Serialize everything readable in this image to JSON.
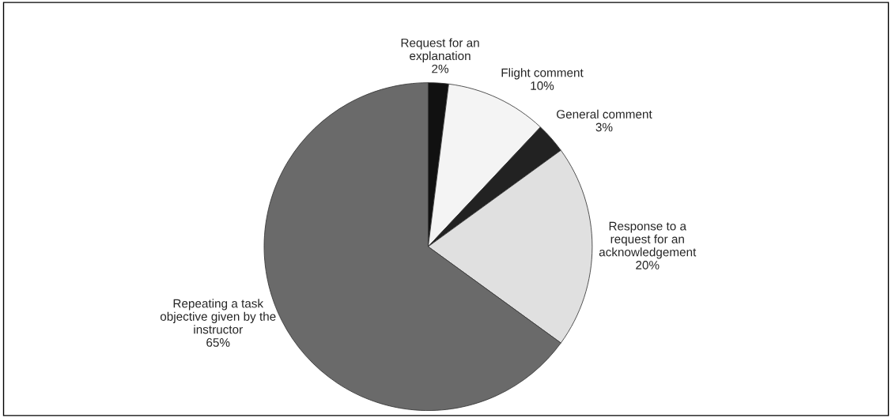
{
  "chart_data": {
    "type": "pie",
    "categories": [
      "Request for an\nexplanation",
      "Flight comment",
      "General comment",
      "Response to a\nrequest for an\nacknowledgement",
      "Repeating a task\nobjective given by the\ninstructor"
    ],
    "values": [
      2,
      10,
      3,
      20,
      65
    ],
    "colors": [
      "#111111",
      "#f4f4f4",
      "#222222",
      "#e0e0e0",
      "#6a6a6a"
    ],
    "value_labels": [
      "2%",
      "10%",
      "3%",
      "20%",
      "65%"
    ]
  }
}
